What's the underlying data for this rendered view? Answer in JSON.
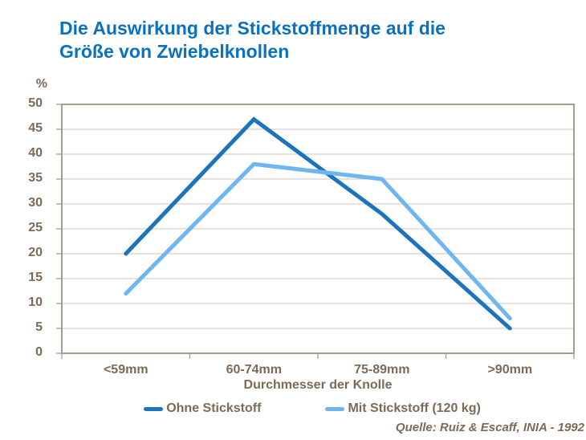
{
  "title": {
    "lines": [
      "Die Auswirkung der Stickstoffmenge auf die",
      "Größe von Zwiebelknollen"
    ]
  },
  "chart_data": {
    "type": "line",
    "categories": [
      "<59mm",
      "60-74mm",
      "75-89mm",
      ">90mm"
    ],
    "series": [
      {
        "name": "Ohne Stickstoff",
        "color": "#1B74BC",
        "values": [
          20,
          47,
          28,
          5
        ]
      },
      {
        "name": "Mit Stickstoff (120 kg)",
        "color": "#6FB5F0",
        "values": [
          12,
          38,
          35,
          7
        ]
      }
    ],
    "title": "Die Auswirkung der Stickstoffmenge auf die Größe von Zwiebelknollen",
    "xlabel": "Durchmesser der Knolle",
    "ylabel": "%",
    "ylim": [
      0,
      50
    ],
    "ytick_step": 5,
    "grid": "horizontal",
    "legend_position": "bottom"
  },
  "source": "Quelle: Ruiz & Escaff, INIA - 1992",
  "colors": {
    "title_text": "#0B70C0",
    "axis_text": "#7C6A57",
    "gridline": "#CFC5B8",
    "border": "#A79C8E",
    "background": "#FFFFFF"
  }
}
